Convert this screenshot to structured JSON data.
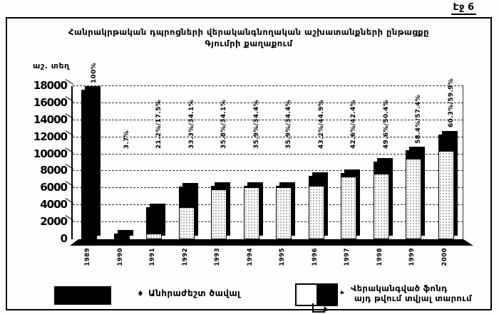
{
  "page": {
    "page_label": "Էջ 6"
  },
  "title": {
    "line1": "Հանրակրթական դպրոցների վերականգնողական աշխատանքների ընթացքը",
    "line2": "Գյումրի քաղաքում"
  },
  "axis": {
    "unit_label": "աշ. տեղ"
  },
  "legend": {
    "item1": {
      "marker": "♦",
      "label": "Անհրաժեշտ ծավալ"
    },
    "item2": {
      "marker": "▸",
      "label_line1": "Վերականգված ֆոնդ",
      "label_line2": "այդ թվում տվյալ տարում"
    }
  },
  "chart_data": {
    "type": "bar",
    "title": "Հանրակրթական դպրոցների վերականգնողական աշխատանքների ընթացքը Գյումրի քաղաքում",
    "title_lines": [
      "Հանրակրթական դպրոցների վերականգնողական աշխատանքների ընթացքը",
      "Գյումրի քաղաքում"
    ],
    "ylabel": "աշ. տեղ",
    "xlabel": "",
    "ylim": [
      0,
      18000
    ],
    "ytick_step": 2000,
    "grid": true,
    "legend_position": "bottom",
    "categories": [
      "1989",
      "1990",
      "1991",
      "1992",
      "1993",
      "1994",
      "1995",
      "1996",
      "1997",
      "1998",
      "1999",
      "2000"
    ],
    "series": [
      {
        "name": "Անհրաժեշտ ծավալ",
        "values": [
          17600,
          0,
          0,
          0,
          0,
          0,
          0,
          0,
          0,
          0,
          0,
          0
        ]
      },
      {
        "name": "Վերականգված ֆոնդ",
        "values": [
          0,
          650,
          3730,
          6200,
          6300,
          6320,
          6320,
          7450,
          7800,
          9100,
          10450,
          12350
        ]
      },
      {
        "name": "այդ թվում տվյալ տարում",
        "values": [
          0,
          650,
          3080,
          2470,
          400,
          60,
          40,
          1130,
          400,
          1400,
          1000,
          1950
        ]
      }
    ],
    "bar_labels": [
      "100%",
      "3.7%",
      "21.2%/17.5%",
      "33.3%/34.1%",
      "35.8%/34.1%",
      "35.9%/34.4%",
      "35.9%/34.4%",
      "43.2%/44.9%",
      "42.6%/42.4%",
      "49.6%/50.4%",
      "58.4%/57.4%",
      "60.3%/59.9%"
    ]
  }
}
